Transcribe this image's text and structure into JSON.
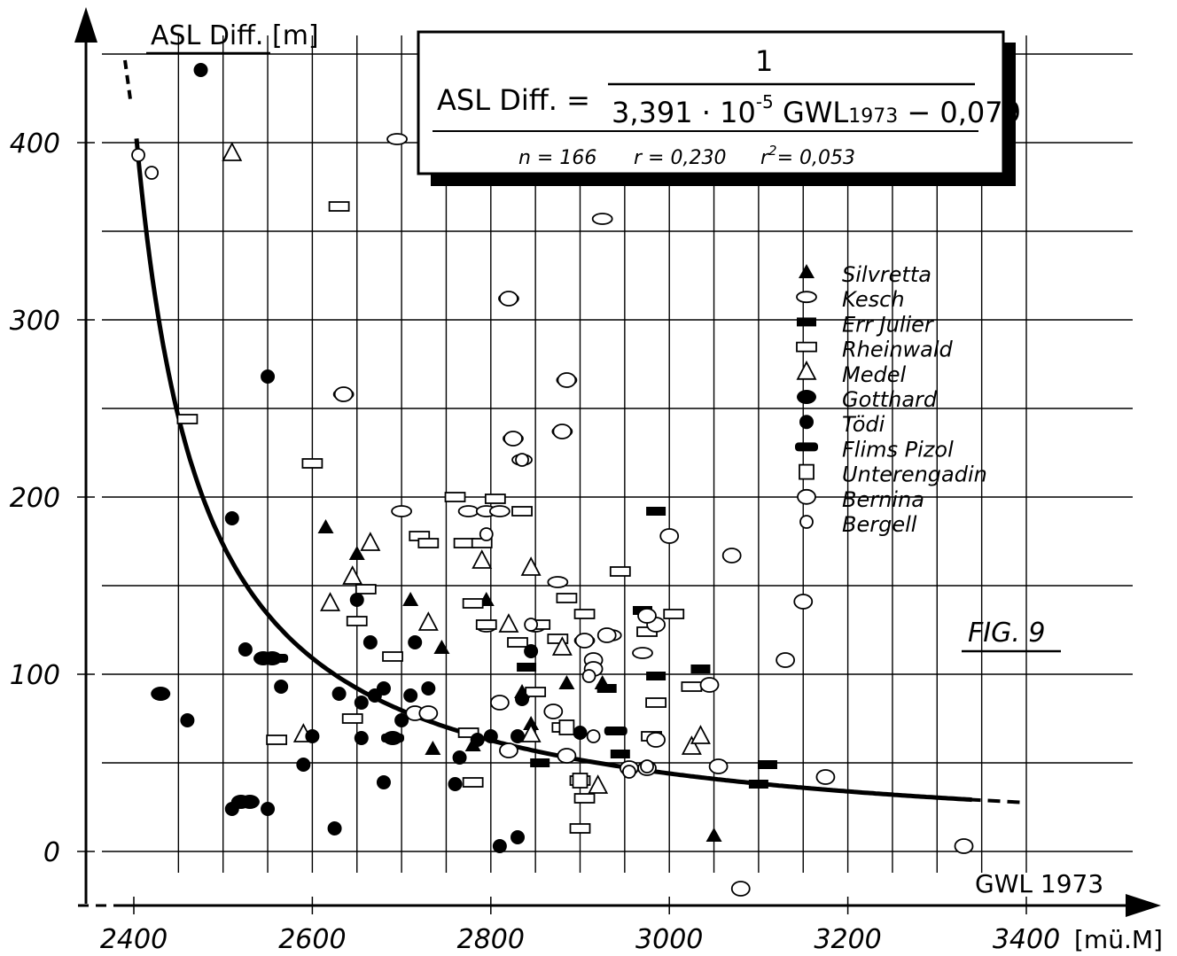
{
  "chart_data": {
    "type": "scatter",
    "figure_label": "FIG. 9",
    "ylabel": "ASL Diff. [m]",
    "xlabel": "GWL 1973",
    "x_unit": "[mü.M]",
    "xlim": [
      2400,
      3400
    ],
    "ylim": [
      0,
      450
    ],
    "x_ticks": [
      "2400",
      "2600",
      "2800",
      "3000",
      "3200",
      "3400"
    ],
    "y_ticks": [
      "0",
      "100",
      "200",
      "300",
      "400"
    ],
    "grid": true,
    "legend_position": "right",
    "formula": {
      "lhs": "ASL Diff. =",
      "numerator": "1",
      "denominator_a": "3,391 · 10",
      "denominator_exp": "-5",
      "denominator_b": " GWL",
      "denominator_sub": "1973",
      "denominator_c": " − 0,079",
      "stat_n": "n = 166",
      "stat_r": "r = 0,230",
      "stat_r2": "= 0,053",
      "stat_r2_label": "r",
      "stat_r2_exp": "2"
    },
    "curve": "1 / (3.391e-5 * GWL - 0.079)",
    "series": [
      {
        "name": "Silvretta",
        "marker": "tri-filled",
        "points": [
          [
            2615,
            183
          ],
          [
            2650,
            168
          ],
          [
            2710,
            142
          ],
          [
            2745,
            115
          ],
          [
            2795,
            142
          ],
          [
            2835,
            90
          ],
          [
            2845,
            72
          ],
          [
            2885,
            95
          ],
          [
            2925,
            95
          ],
          [
            2735,
            58
          ],
          [
            2780,
            60
          ],
          [
            3050,
            9
          ]
        ]
      },
      {
        "name": "Kesch",
        "marker": "oval-open",
        "points": [
          [
            2695,
            402
          ],
          [
            2925,
            357
          ],
          [
            2820,
            312
          ],
          [
            2635,
            258
          ],
          [
            2885,
            266
          ],
          [
            2825,
            233
          ],
          [
            2835,
            221
          ],
          [
            2775,
            192
          ],
          [
            2795,
            192
          ],
          [
            2810,
            192
          ],
          [
            2880,
            237
          ],
          [
            2935,
            122
          ],
          [
            2875,
            152
          ],
          [
            2795,
            127
          ],
          [
            2850,
            127
          ],
          [
            2905,
            119
          ],
          [
            2970,
            112
          ],
          [
            2700,
            192
          ]
        ]
      },
      {
        "name": "Err Julier",
        "marker": "bar-filled",
        "points": [
          [
            2985,
            192
          ],
          [
            2970,
            136
          ],
          [
            2840,
            104
          ],
          [
            2985,
            99
          ],
          [
            3035,
            103
          ],
          [
            2940,
            68
          ],
          [
            2930,
            92
          ],
          [
            2945,
            55
          ],
          [
            2855,
            50
          ],
          [
            3110,
            49
          ],
          [
            3100,
            38
          ]
        ]
      },
      {
        "name": "Rheinwald",
        "marker": "rect-open",
        "points": [
          [
            2630,
            364
          ],
          [
            2460,
            244
          ],
          [
            2600,
            219
          ],
          [
            2720,
            178
          ],
          [
            2730,
            174
          ],
          [
            2770,
            174
          ],
          [
            2790,
            174
          ],
          [
            2760,
            200
          ],
          [
            2805,
            199
          ],
          [
            2835,
            192
          ],
          [
            2780,
            140
          ],
          [
            2795,
            128
          ],
          [
            2830,
            118
          ],
          [
            2855,
            128
          ],
          [
            2875,
            120
          ],
          [
            2885,
            143
          ],
          [
            2905,
            134
          ],
          [
            2945,
            158
          ],
          [
            2975,
            124
          ],
          [
            3005,
            134
          ],
          [
            2690,
            110
          ],
          [
            2650,
            130
          ],
          [
            2660,
            148
          ],
          [
            2850,
            90
          ],
          [
            3025,
            93
          ],
          [
            2985,
            84
          ],
          [
            2880,
            70
          ],
          [
            2775,
            67
          ],
          [
            2780,
            39
          ],
          [
            2900,
            40
          ],
          [
            2905,
            30
          ],
          [
            2900,
            13
          ],
          [
            2980,
            65
          ],
          [
            2645,
            75
          ],
          [
            2560,
            63
          ]
        ]
      },
      {
        "name": "Medel",
        "marker": "tri-open",
        "points": [
          [
            2510,
            394
          ],
          [
            2665,
            174
          ],
          [
            2645,
            155
          ],
          [
            2620,
            140
          ],
          [
            2730,
            129
          ],
          [
            2790,
            164
          ],
          [
            2820,
            128
          ],
          [
            2845,
            160
          ],
          [
            2880,
            115
          ],
          [
            2845,
            66
          ],
          [
            2590,
            66
          ],
          [
            2920,
            37
          ],
          [
            3025,
            59
          ],
          [
            3035,
            65
          ]
        ]
      },
      {
        "name": "Gotthard",
        "marker": "oval-filled",
        "points": [
          [
            2430,
            89
          ],
          [
            2555,
            109
          ],
          [
            2545,
            109
          ],
          [
            2530,
            28
          ],
          [
            2520,
            28
          ],
          [
            2690,
            64
          ]
        ]
      },
      {
        "name": "Tödi",
        "marker": "dot-filled",
        "points": [
          [
            2475,
            441
          ],
          [
            2550,
            268
          ],
          [
            2510,
            188
          ],
          [
            2525,
            114
          ],
          [
            2565,
            93
          ],
          [
            2460,
            74
          ],
          [
            2510,
            24
          ],
          [
            2550,
            24
          ],
          [
            2590,
            49
          ],
          [
            2600,
            65
          ],
          [
            2625,
            13
          ],
          [
            2630,
            89
          ],
          [
            2650,
            142
          ],
          [
            2665,
            118
          ],
          [
            2655,
            84
          ],
          [
            2670,
            88
          ],
          [
            2680,
            92
          ],
          [
            2680,
            39
          ],
          [
            2700,
            74
          ],
          [
            2710,
            88
          ],
          [
            2715,
            118
          ],
          [
            2730,
            92
          ],
          [
            2760,
            38
          ],
          [
            2765,
            53
          ],
          [
            2785,
            63
          ],
          [
            2800,
            65
          ],
          [
            2810,
            3
          ],
          [
            2830,
            8
          ],
          [
            2830,
            65
          ],
          [
            2835,
            86
          ],
          [
            2845,
            113
          ],
          [
            2655,
            64
          ],
          [
            2900,
            67
          ]
        ]
      },
      {
        "name": "Flims Pizol",
        "marker": "bar-filled-wide",
        "points": [
          [
            2560,
            109
          ],
          [
            2690,
            64
          ],
          [
            2940,
            68
          ]
        ]
      },
      {
        "name": "Unterengadin",
        "marker": "square-open",
        "points": [
          [
            2885,
            70
          ],
          [
            2900,
            40
          ]
        ]
      },
      {
        "name": "Bernina",
        "marker": "circle-open-large",
        "points": [
          [
            2635,
            258
          ],
          [
            2820,
            312
          ],
          [
            2885,
            266
          ],
          [
            2880,
            237
          ],
          [
            2825,
            233
          ],
          [
            3000,
            178
          ],
          [
            3070,
            167
          ],
          [
            3150,
            141
          ],
          [
            3130,
            108
          ],
          [
            3045,
            94
          ],
          [
            3055,
            48
          ],
          [
            3175,
            42
          ],
          [
            3080,
            -21
          ],
          [
            3330,
            3
          ],
          [
            2985,
            128
          ],
          [
            2975,
            133
          ],
          [
            2930,
            122
          ],
          [
            2905,
            119
          ],
          [
            2915,
            108
          ],
          [
            2915,
            103
          ],
          [
            2870,
            79
          ],
          [
            2810,
            84
          ],
          [
            2820,
            57
          ],
          [
            2715,
            78
          ],
          [
            2730,
            78
          ],
          [
            2955,
            47
          ],
          [
            2975,
            47
          ],
          [
            2985,
            63
          ],
          [
            2885,
            54
          ]
        ]
      },
      {
        "name": "Bergell",
        "marker": "circle-open-small",
        "points": [
          [
            2405,
            393
          ],
          [
            2420,
            383
          ],
          [
            2795,
            179
          ],
          [
            2835,
            221
          ],
          [
            2845,
            128
          ],
          [
            2955,
            45
          ],
          [
            2910,
            99
          ],
          [
            2915,
            65
          ],
          [
            2975,
            48
          ]
        ]
      }
    ]
  }
}
